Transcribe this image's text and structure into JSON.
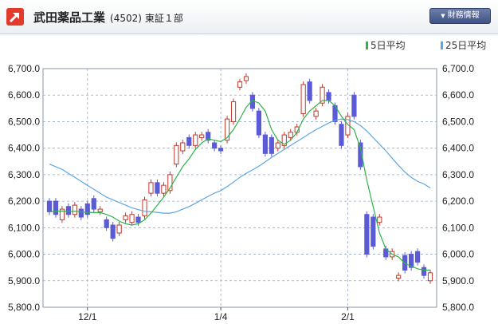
{
  "header": {
    "title": "武田薬品工業",
    "code": "(4502)",
    "market": "東証１部",
    "financial_button": "財務情報",
    "icon": "arrow-up-right-icon"
  },
  "legend": {
    "ma5": "5日平均",
    "ma25": "25日平均"
  },
  "colors": {
    "up_candle": "#c0392b",
    "down_candle": "#5b5bd6",
    "ma5_line": "#2fb34a",
    "ma25_line": "#5ea6e0",
    "grid": "#9aa9c4",
    "logo": "#e23b2e"
  },
  "chart_data": {
    "type": "candlestick",
    "y_ticks": [
      "6,700.0",
      "6,600.0",
      "6,500.0",
      "6,400.0",
      "6,300.0",
      "6,200.0",
      "6,100.0",
      "6,000.0",
      "5,900.0",
      "5,800.0"
    ],
    "x_ticks": [
      "12/1",
      "1/4",
      "2/1"
    ],
    "ylim": [
      5800,
      6700
    ],
    "candles": [
      {
        "o": 6200,
        "c": 6160
      },
      {
        "o": 6200,
        "c": 6150
      },
      {
        "o": 6130,
        "c": 6170
      },
      {
        "o": 6180,
        "c": 6150
      },
      {
        "o": 6150,
        "c": 6185
      },
      {
        "o": 6170,
        "c": 6140
      },
      {
        "o": 6190,
        "c": 6150
      },
      {
        "o": 6210,
        "c": 6170
      },
      {
        "o": 6160,
        "c": 6170
      },
      {
        "o": 6130,
        "c": 6100
      },
      {
        "o": 6110,
        "c": 6060
      },
      {
        "o": 6080,
        "c": 6110
      },
      {
        "o": 6130,
        "c": 6145
      },
      {
        "o": 6120,
        "c": 6150
      },
      {
        "o": 6140,
        "c": 6120
      },
      {
        "o": 6145,
        "c": 6205
      },
      {
        "o": 6230,
        "c": 6270
      },
      {
        "o": 6270,
        "c": 6230
      },
      {
        "o": 6230,
        "c": 6260
      },
      {
        "o": 6240,
        "c": 6300
      },
      {
        "o": 6340,
        "c": 6410
      },
      {
        "o": 6390,
        "c": 6420
      },
      {
        "o": 6440,
        "c": 6410
      },
      {
        "o": 6410,
        "c": 6450
      },
      {
        "o": 6440,
        "c": 6450
      },
      {
        "o": 6460,
        "c": 6430
      },
      {
        "o": 6420,
        "c": 6400
      },
      {
        "o": 6400,
        "c": 6390
      },
      {
        "o": 6430,
        "c": 6510
      },
      {
        "o": 6500,
        "c": 6575
      },
      {
        "o": 6630,
        "c": 6650
      },
      {
        "o": 6655,
        "c": 6670
      },
      {
        "o": 6600,
        "c": 6550
      },
      {
        "o": 6540,
        "c": 6450
      },
      {
        "o": 6450,
        "c": 6380
      },
      {
        "o": 6440,
        "c": 6380
      },
      {
        "o": 6400,
        "c": 6420
      },
      {
        "o": 6410,
        "c": 6450
      },
      {
        "o": 6440,
        "c": 6460
      },
      {
        "o": 6460,
        "c": 6480
      },
      {
        "o": 6530,
        "c": 6640
      },
      {
        "o": 6650,
        "c": 6580
      },
      {
        "o": 6520,
        "c": 6540
      },
      {
        "o": 6570,
        "c": 6630
      },
      {
        "o": 6610,
        "c": 6580
      },
      {
        "o": 6560,
        "c": 6500
      },
      {
        "o": 6490,
        "c": 6410
      },
      {
        "o": 6450,
        "c": 6520
      },
      {
        "o": 6600,
        "c": 6520
      },
      {
        "o": 6420,
        "c": 6330
      },
      {
        "o": 6150,
        "c": 6000
      },
      {
        "o": 6140,
        "c": 6030
      },
      {
        "o": 6120,
        "c": 6140
      },
      {
        "o": 6020,
        "c": 5990
      },
      {
        "o": 5990,
        "c": 6010
      },
      {
        "o": 5910,
        "c": 5920
      },
      {
        "o": 5995,
        "c": 5940
      },
      {
        "o": 6000,
        "c": 5950
      },
      {
        "o": 6010,
        "c": 5970
      },
      {
        "o": 5950,
        "c": 5920
      },
      {
        "o": 5900,
        "c": 5930
      }
    ],
    "ma5": [
      6160,
      6162,
      6163,
      6160,
      6162,
      6160,
      6158,
      6157,
      6157,
      6150,
      6140,
      6125,
      6115,
      6110,
      6115,
      6130,
      6155,
      6185,
      6215,
      6250,
      6290,
      6330,
      6360,
      6395,
      6420,
      6435,
      6430,
      6425,
      6440,
      6470,
      6510,
      6555,
      6580,
      6570,
      6540,
      6470,
      6430,
      6415,
      6430,
      6460,
      6510,
      6540,
      6560,
      6580,
      6580,
      6560,
      6520,
      6490,
      6470,
      6400,
      6280,
      6180,
      6080,
      6020,
      6000,
      5990,
      5965,
      5955,
      5945,
      5940,
      5940
    ],
    "ma25": [
      6340,
      6330,
      6320,
      6305,
      6290,
      6275,
      6260,
      6245,
      6230,
      6215,
      6205,
      6195,
      6185,
      6175,
      6168,
      6162,
      6160,
      6158,
      6155,
      6155,
      6160,
      6170,
      6180,
      6192,
      6205,
      6218,
      6230,
      6240,
      6255,
      6272,
      6290,
      6305,
      6318,
      6332,
      6348,
      6365,
      6380,
      6395,
      6410,
      6425,
      6440,
      6455,
      6470,
      6482,
      6495,
      6505,
      6510,
      6508,
      6500,
      6485,
      6465,
      6440,
      6415,
      6390,
      6362,
      6335,
      6310,
      6290,
      6275,
      6265,
      6250
    ]
  }
}
